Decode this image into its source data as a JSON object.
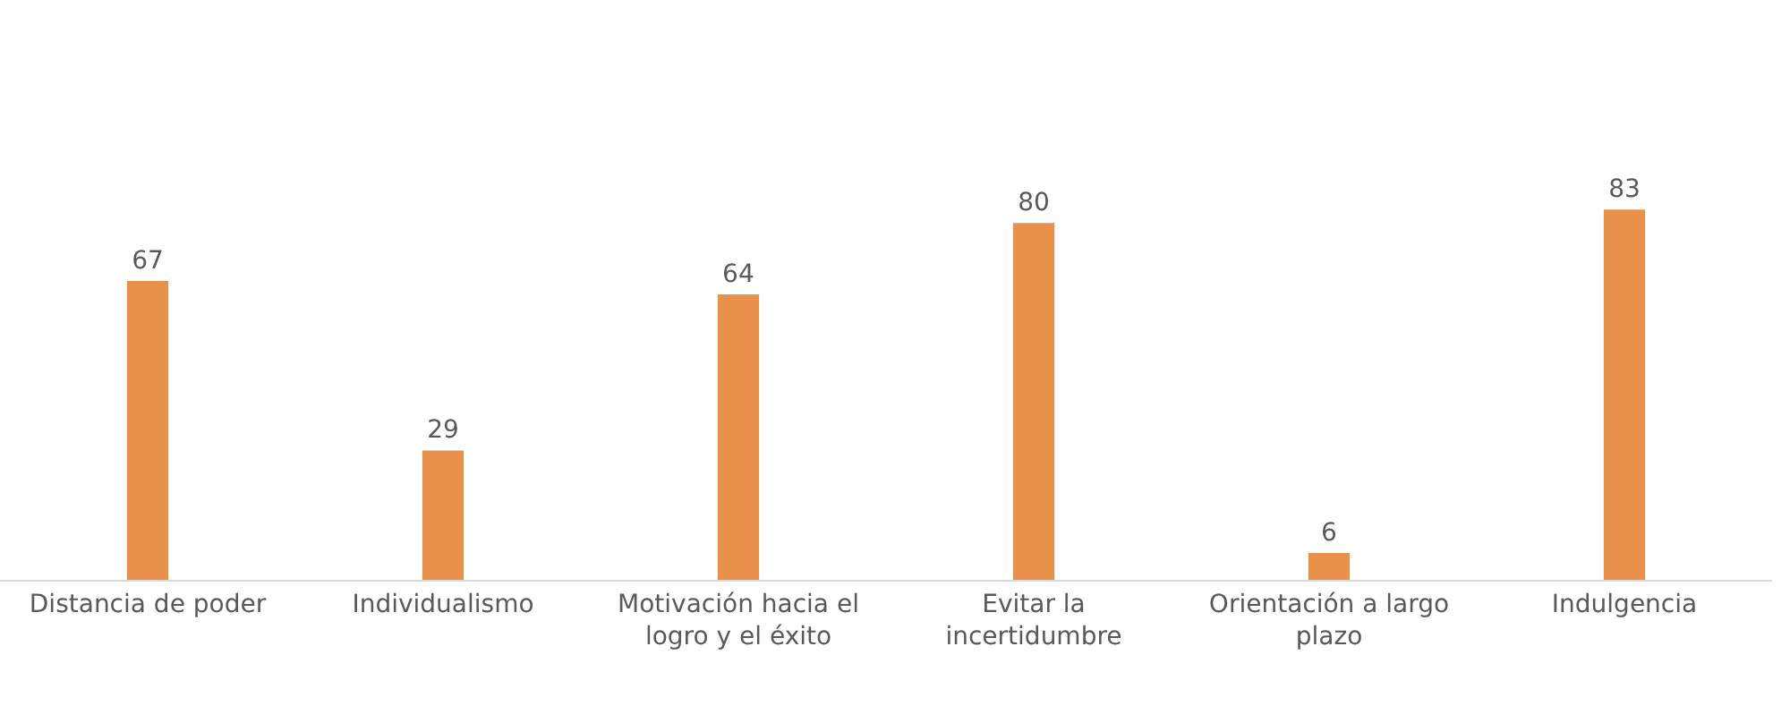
{
  "chart_data": {
    "type": "bar",
    "categories": [
      "Distancia de poder",
      "Individualismo",
      "Motivación hacia el logro y el éxito",
      "Evitar la incertidumbre",
      "Orientación a largo plazo",
      "Indulgencia"
    ],
    "values": [
      67,
      29,
      64,
      80,
      6,
      83
    ],
    "color": "#e8914a",
    "ylim": [
      0,
      130
    ],
    "tick_labels": "x",
    "grid": false,
    "legend": false,
    "data_labels": true
  }
}
